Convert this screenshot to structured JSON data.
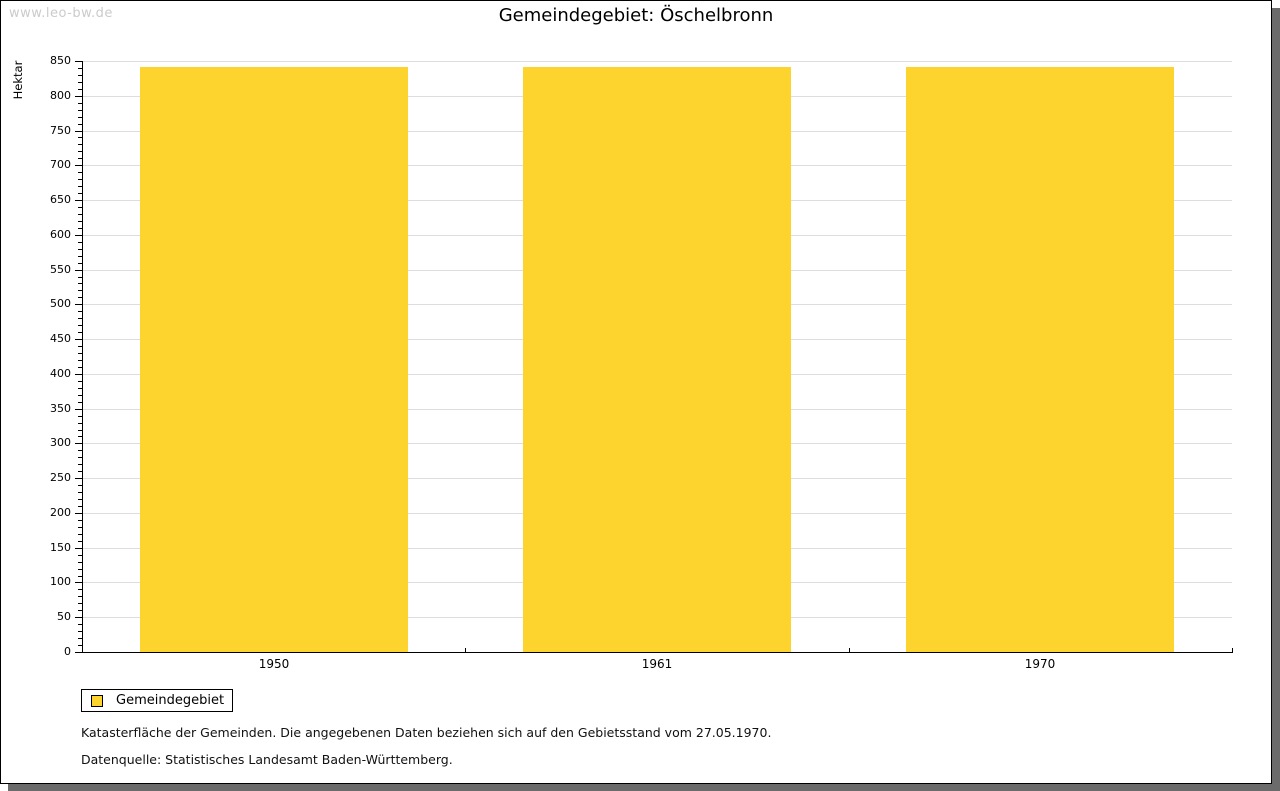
{
  "watermark": "www.leo-bw.de",
  "title": "Gemeindegebiet: Öschelbronn",
  "chart_data": {
    "type": "bar",
    "title": "Gemeindegebiet: Öschelbronn",
    "categories": [
      "1950",
      "1961",
      "1970"
    ],
    "series": [
      {
        "name": "Gemeindegebiet",
        "values": [
          841,
          841,
          841
        ]
      }
    ],
    "xlabel": "",
    "ylabel": "Hektar",
    "ylim": [
      0,
      850
    ],
    "ytick_step": 50,
    "yminor_step": 10,
    "grid": true,
    "legend_position": "bottom-left",
    "bar_color": "#fcd42d"
  },
  "legend": {
    "items": [
      {
        "label": "Gemeindegebiet",
        "color": "#fcd42d"
      }
    ]
  },
  "footer": {
    "line1": "Katasterfläche der Gemeinden. Die angegebenen Daten beziehen sich auf den Gebietsstand vom 27.05.1970.",
    "line2": "Datenquelle: Statistisches Landesamt Baden-Württemberg."
  },
  "colors": {
    "bar": "#fcd42d",
    "gridline": "#dddddd",
    "axis": "#000000",
    "watermark": "#cbcbcb",
    "frame_shadow": "#6b6b6b"
  }
}
